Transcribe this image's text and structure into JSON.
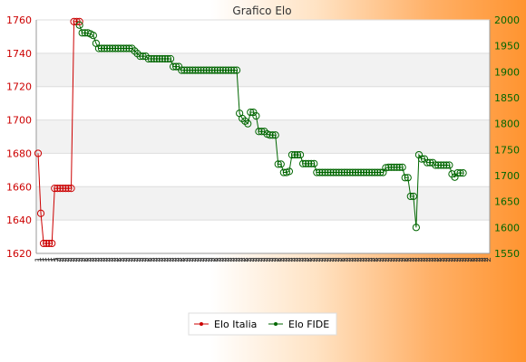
{
  "chart_data": {
    "type": "line",
    "title": "Grafico Elo",
    "legend": {
      "placement": "bottom-center"
    },
    "y_left": {
      "min": 1620,
      "max": 1760,
      "ticks": [
        1620,
        1640,
        1660,
        1680,
        1700,
        1720,
        1740,
        1760
      ],
      "color": "#cc0000"
    },
    "y_right": {
      "min": 1550,
      "max": 2000,
      "ticks": [
        1550,
        1600,
        1650,
        1700,
        1750,
        1800,
        1850,
        1900,
        1950,
        2000
      ],
      "color": "#006600"
    },
    "x_tick_labels": [
      "1",
      "1",
      "1",
      "1",
      "1",
      "1",
      "1",
      "2",
      "2",
      "2",
      "2",
      "2",
      "2",
      "2",
      "2",
      "2",
      "2",
      "2",
      "2",
      "2",
      "2",
      "2",
      "2",
      "2",
      "2",
      "2",
      "2",
      "2",
      "2",
      "2",
      "2",
      "2",
      "2",
      "2",
      "2",
      "2",
      "2",
      "2",
      "2",
      "2",
      "2",
      "2",
      "2",
      "2",
      "2",
      "2",
      "2",
      "2",
      "2",
      "2",
      "2",
      "2",
      "2",
      "2",
      "2",
      "2",
      "2",
      "2",
      "2",
      "2",
      "2",
      "2",
      "2",
      "2",
      "2",
      "2",
      "2",
      "2",
      "2",
      "2",
      "2",
      "2",
      "2",
      "2",
      "2",
      "2",
      "2",
      "2",
      "2",
      "2",
      "2",
      "2",
      "2",
      "2",
      "2",
      "2",
      "2",
      "2",
      "2",
      "2",
      "2",
      "2",
      "2",
      "2",
      "2",
      "2",
      "2",
      "2",
      "2",
      "2",
      "2",
      "2",
      "2",
      "2",
      "2",
      "2",
      "2",
      "2",
      "2",
      "2",
      "2",
      "2",
      "2",
      "2",
      "2",
      "2",
      "2",
      "2",
      "2",
      "2",
      "2",
      "2",
      "2",
      "2",
      "2",
      "2",
      "2",
      "2",
      "2",
      "2",
      "2",
      "2",
      "2",
      "2",
      "2",
      "2",
      "2",
      "2",
      "2",
      "2",
      "2",
      "2",
      "2",
      "2",
      "2",
      "2",
      "2",
      "2",
      "2",
      "2",
      "2",
      "2",
      "2",
      "2",
      "2",
      "2",
      "2",
      "2",
      "2",
      "2",
      "2",
      "2",
      "2",
      "2"
    ],
    "series": [
      {
        "name": "Elo Italia",
        "axis": "left",
        "color": "#cc0000",
        "points": [
          [
            0,
            1680
          ],
          [
            1,
            1644
          ],
          [
            2,
            1626
          ],
          [
            3,
            1626
          ],
          [
            4,
            1626
          ],
          [
            5,
            1626
          ],
          [
            6,
            1659
          ],
          [
            7,
            1659
          ],
          [
            8,
            1659
          ],
          [
            9,
            1659
          ],
          [
            10,
            1659
          ],
          [
            11,
            1659
          ],
          [
            12,
            1659
          ],
          [
            13,
            1759
          ],
          [
            14,
            1759
          ],
          [
            15,
            1759
          ]
        ]
      },
      {
        "name": "Elo FIDE",
        "axis": "right",
        "color": "#006600",
        "points": [
          [
            15,
            1990
          ],
          [
            16,
            1975
          ],
          [
            17,
            1975
          ],
          [
            18,
            1975
          ],
          [
            19,
            1973
          ],
          [
            20,
            1970
          ],
          [
            21,
            1955
          ],
          [
            22,
            1945
          ],
          [
            23,
            1945
          ],
          [
            24,
            1945
          ],
          [
            25,
            1945
          ],
          [
            26,
            1945
          ],
          [
            27,
            1945
          ],
          [
            28,
            1945
          ],
          [
            29,
            1945
          ],
          [
            30,
            1945
          ],
          [
            31,
            1945
          ],
          [
            32,
            1945
          ],
          [
            33,
            1945
          ],
          [
            34,
            1945
          ],
          [
            35,
            1940
          ],
          [
            36,
            1935
          ],
          [
            37,
            1930
          ],
          [
            38,
            1930
          ],
          [
            39,
            1930
          ],
          [
            40,
            1925
          ],
          [
            41,
            1925
          ],
          [
            42,
            1925
          ],
          [
            43,
            1925
          ],
          [
            44,
            1925
          ],
          [
            45,
            1925
          ],
          [
            46,
            1925
          ],
          [
            47,
            1925
          ],
          [
            48,
            1925
          ],
          [
            49,
            1910
          ],
          [
            50,
            1910
          ],
          [
            51,
            1910
          ],
          [
            52,
            1903
          ],
          [
            53,
            1903
          ],
          [
            54,
            1903
          ],
          [
            55,
            1903
          ],
          [
            56,
            1903
          ],
          [
            57,
            1903
          ],
          [
            58,
            1903
          ],
          [
            59,
            1903
          ],
          [
            60,
            1903
          ],
          [
            61,
            1903
          ],
          [
            62,
            1903
          ],
          [
            63,
            1903
          ],
          [
            64,
            1903
          ],
          [
            65,
            1903
          ],
          [
            66,
            1903
          ],
          [
            67,
            1903
          ],
          [
            68,
            1903
          ],
          [
            69,
            1903
          ],
          [
            70,
            1903
          ],
          [
            71,
            1903
          ],
          [
            72,
            1903
          ],
          [
            73,
            1820
          ],
          [
            74,
            1810
          ],
          [
            75,
            1805
          ],
          [
            76,
            1800
          ],
          [
            77,
            1822
          ],
          [
            78,
            1822
          ],
          [
            79,
            1815
          ],
          [
            80,
            1785
          ],
          [
            81,
            1785
          ],
          [
            82,
            1785
          ],
          [
            83,
            1780
          ],
          [
            84,
            1778
          ],
          [
            85,
            1778
          ],
          [
            86,
            1778
          ],
          [
            87,
            1722
          ],
          [
            88,
            1722
          ],
          [
            89,
            1706
          ],
          [
            90,
            1706
          ],
          [
            91,
            1708
          ],
          [
            92,
            1740
          ],
          [
            93,
            1740
          ],
          [
            94,
            1740
          ],
          [
            95,
            1740
          ],
          [
            96,
            1723
          ],
          [
            97,
            1723
          ],
          [
            98,
            1723
          ],
          [
            99,
            1723
          ],
          [
            100,
            1723
          ],
          [
            101,
            1706
          ],
          [
            102,
            1706
          ],
          [
            103,
            1706
          ],
          [
            104,
            1706
          ],
          [
            105,
            1706
          ],
          [
            106,
            1706
          ],
          [
            107,
            1706
          ],
          [
            108,
            1706
          ],
          [
            109,
            1706
          ],
          [
            110,
            1706
          ],
          [
            111,
            1706
          ],
          [
            112,
            1706
          ],
          [
            113,
            1706
          ],
          [
            114,
            1706
          ],
          [
            115,
            1706
          ],
          [
            116,
            1706
          ],
          [
            117,
            1706
          ],
          [
            118,
            1706
          ],
          [
            119,
            1706
          ],
          [
            120,
            1706
          ],
          [
            121,
            1706
          ],
          [
            122,
            1706
          ],
          [
            123,
            1706
          ],
          [
            124,
            1706
          ],
          [
            125,
            1706
          ],
          [
            126,
            1715
          ],
          [
            127,
            1716
          ],
          [
            128,
            1716
          ],
          [
            129,
            1716
          ],
          [
            130,
            1716
          ],
          [
            131,
            1716
          ],
          [
            132,
            1716
          ],
          [
            133,
            1696
          ],
          [
            134,
            1696
          ],
          [
            135,
            1660
          ],
          [
            136,
            1660
          ],
          [
            137,
            1600
          ],
          [
            138,
            1740
          ],
          [
            139,
            1732
          ],
          [
            140,
            1732
          ],
          [
            141,
            1725
          ],
          [
            142,
            1725
          ],
          [
            143,
            1725
          ],
          [
            144,
            1720
          ],
          [
            145,
            1720
          ],
          [
            146,
            1720
          ],
          [
            147,
            1720
          ],
          [
            148,
            1720
          ],
          [
            149,
            1720
          ],
          [
            150,
            1703
          ],
          [
            151,
            1697
          ],
          [
            152,
            1705
          ],
          [
            153,
            1705
          ],
          [
            154,
            1705
          ]
        ]
      }
    ]
  }
}
